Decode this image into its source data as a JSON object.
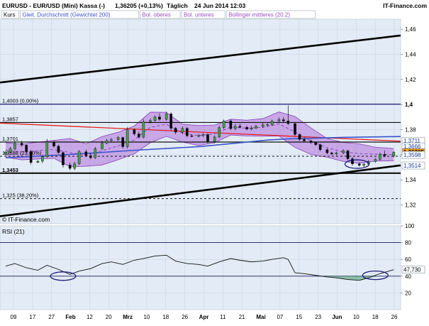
{
  "header": {
    "symbol": "EURUSD - EUR/USD (Mini) Kassa (-)",
    "last": "1,36205 (+0,13%)",
    "period": "Täglich",
    "datetime": "24 Jun 2014 12:03",
    "source": "IT-Finance.com"
  },
  "legend": [
    {
      "label": "Kurs",
      "color": "#000000"
    },
    {
      "label": "Gleit. Durchschnitt (Gewichtet 200)",
      "color": "#3a55c8"
    },
    {
      "label": "Bol. oberes",
      "color": "#9a4fc4"
    },
    {
      "label": "Bol. unteres",
      "color": "#9a4fc4"
    },
    {
      "label": "Bollinger mittleres (20.2)",
      "color": "#9a4fc4"
    }
  ],
  "watermark": "© IT-Finance.com",
  "colors": {
    "panel_bg": "#e3ecf6",
    "candle_up": "#3da33d",
    "candle_down": "#000000",
    "band_fill": "#b070d8",
    "wma": "#3a55c8",
    "red_line": "#e02020",
    "price_tag": "#f0a020"
  },
  "chart_data": [
    {
      "type": "candlestick",
      "title": "EURUSD - EUR/USD (Mini) Kassa (-)",
      "ylim": [
        1.305,
        1.468
      ],
      "y_ticks": [
        "1,32",
        "1,34",
        "1,36",
        "1,38",
        "1,4",
        "1,42",
        "1,44",
        "1,46"
      ],
      "x_ticks": [
        "09",
        "17",
        "27",
        "Feb",
        "12",
        "20",
        "Mrz",
        "10",
        "18",
        "26",
        "Apr",
        "11",
        "21",
        "Mai",
        "07",
        "15",
        "23",
        "Jun",
        "10",
        "18",
        "26"
      ],
      "x_start": "2014-01-06",
      "x_end": "2014-06-27",
      "levels": [
        {
          "label": "1,4003 (0,00%)",
          "value": 1.4003,
          "style": "solid"
        },
        {
          "label": "1,3857",
          "value": 1.3857,
          "style": "solid"
        },
        {
          "label": "1,3701",
          "value": 1.3701,
          "style": "solid"
        },
        {
          "label": "1,3588 (23,60%)",
          "value": 1.3588,
          "style": "dashed"
        },
        {
          "label": "1,3453",
          "value": 1.3453,
          "style": "solid-thick"
        },
        {
          "label": "1,325 (38,20%)",
          "value": 1.325,
          "style": "dashed"
        }
      ],
      "price_labels": [
        {
          "text": "1,3711",
          "value": 1.3711
        },
        {
          "text": "1,3666",
          "value": 1.3666
        },
        {
          "text": "1,36205",
          "value": 1.36205,
          "highlight": true
        },
        {
          "text": "1,3598",
          "value": 1.3598
        },
        {
          "text": "1,3514",
          "value": 1.3514
        }
      ],
      "trendlines": [
        {
          "name": "upper channel",
          "from": [
            "2014-01-06",
            1.4175
          ],
          "to": [
            "2014-06-27",
            1.455
          ]
        },
        {
          "name": "lower channel",
          "from": [
            "2014-01-06",
            1.311
          ],
          "to": [
            "2014-06-27",
            1.3515
          ]
        },
        {
          "name": "resistance",
          "from": [
            "2014-01-06",
            1.3852
          ],
          "to": [
            "2014-06-27",
            1.3708
          ]
        }
      ],
      "weighted_ma_200": [
        [
          "2014-01-06",
          1.3575
        ],
        [
          "2014-02-03",
          1.3602
        ],
        [
          "2014-03-03",
          1.3635
        ],
        [
          "2014-04-01",
          1.3665
        ],
        [
          "2014-05-01",
          1.3718
        ],
        [
          "2014-05-09",
          1.3726
        ],
        [
          "2014-06-02",
          1.3738
        ],
        [
          "2014-06-27",
          1.3745
        ]
      ],
      "bollinger_bands": [
        {
          "d": "2014-01-06",
          "upper": 1.3696,
          "middle": 1.3638,
          "lower": 1.3579
        },
        {
          "d": "2014-01-13",
          "upper": 1.3684,
          "middle": 1.3622,
          "lower": 1.3559
        },
        {
          "d": "2014-01-20",
          "upper": 1.37,
          "middle": 1.3633,
          "lower": 1.3566
        },
        {
          "d": "2014-01-27",
          "upper": 1.3714,
          "middle": 1.3642,
          "lower": 1.3571
        },
        {
          "d": "2014-02-03",
          "upper": 1.3729,
          "middle": 1.3617,
          "lower": 1.3504
        },
        {
          "d": "2014-02-10",
          "upper": 1.3687,
          "middle": 1.3598,
          "lower": 1.3508
        },
        {
          "d": "2014-02-17",
          "upper": 1.3745,
          "middle": 1.3632,
          "lower": 1.3518
        },
        {
          "d": "2014-02-24",
          "upper": 1.3779,
          "middle": 1.367,
          "lower": 1.356
        },
        {
          "d": "2014-03-03",
          "upper": 1.3829,
          "middle": 1.3718,
          "lower": 1.3607
        },
        {
          "d": "2014-03-10",
          "upper": 1.3939,
          "middle": 1.3818,
          "lower": 1.3696
        },
        {
          "d": "2014-03-17",
          "upper": 1.3938,
          "middle": 1.3842,
          "lower": 1.3746
        },
        {
          "d": "2014-03-24",
          "upper": 1.3843,
          "middle": 1.3772,
          "lower": 1.3701
        },
        {
          "d": "2014-03-31",
          "upper": 1.3832,
          "middle": 1.3753,
          "lower": 1.3673
        },
        {
          "d": "2014-04-07",
          "upper": 1.3836,
          "middle": 1.3766,
          "lower": 1.3695
        },
        {
          "d": "2014-04-14",
          "upper": 1.3883,
          "middle": 1.382,
          "lower": 1.3757
        },
        {
          "d": "2014-04-21",
          "upper": 1.3875,
          "middle": 1.3812,
          "lower": 1.3749
        },
        {
          "d": "2014-04-28",
          "upper": 1.3888,
          "middle": 1.3818,
          "lower": 1.3747
        },
        {
          "d": "2014-05-05",
          "upper": 1.3941,
          "middle": 1.3845,
          "lower": 1.3749
        },
        {
          "d": "2014-05-12",
          "upper": 1.3905,
          "middle": 1.3782,
          "lower": 1.3658
        },
        {
          "d": "2014-05-19",
          "upper": 1.3813,
          "middle": 1.3708,
          "lower": 1.3602
        },
        {
          "d": "2014-05-26",
          "upper": 1.3729,
          "middle": 1.3655,
          "lower": 1.358
        },
        {
          "d": "2014-06-02",
          "upper": 1.3698,
          "middle": 1.3622,
          "lower": 1.3546
        },
        {
          "d": "2014-06-09",
          "upper": 1.3686,
          "middle": 1.3609,
          "lower": 1.3531
        },
        {
          "d": "2014-06-16",
          "upper": 1.366,
          "middle": 1.3605,
          "lower": 1.3549
        },
        {
          "d": "2014-06-24",
          "upper": 1.365,
          "middle": 1.3601,
          "lower": 1.3552
        }
      ],
      "candles": [
        {
          "d": "2014-01-06",
          "o": 1.3605,
          "h": 1.3632,
          "l": 1.3594,
          "c": 1.362
        },
        {
          "d": "2014-01-08",
          "o": 1.362,
          "h": 1.3662,
          "l": 1.3607,
          "c": 1.3648
        },
        {
          "d": "2014-01-10",
          "o": 1.3648,
          "h": 1.3711,
          "l": 1.3634,
          "c": 1.3692
        },
        {
          "d": "2014-01-13",
          "o": 1.3692,
          "h": 1.3711,
          "l": 1.3664,
          "c": 1.3676
        },
        {
          "d": "2014-01-15",
          "o": 1.3676,
          "h": 1.3683,
          "l": 1.3612,
          "c": 1.3624
        },
        {
          "d": "2014-01-17",
          "o": 1.3624,
          "h": 1.3638,
          "l": 1.3522,
          "c": 1.3538
        },
        {
          "d": "2014-01-20",
          "o": 1.3538,
          "h": 1.3557,
          "l": 1.3533,
          "c": 1.3548
        },
        {
          "d": "2014-01-22",
          "o": 1.3548,
          "h": 1.3596,
          "l": 1.3533,
          "c": 1.3584
        },
        {
          "d": "2014-01-24",
          "o": 1.3584,
          "h": 1.3726,
          "l": 1.3574,
          "c": 1.3701
        },
        {
          "d": "2014-01-27",
          "o": 1.3701,
          "h": 1.3711,
          "l": 1.3656,
          "c": 1.3668
        },
        {
          "d": "2014-01-29",
          "o": 1.3668,
          "h": 1.368,
          "l": 1.3607,
          "c": 1.3617
        },
        {
          "d": "2014-01-31",
          "o": 1.3617,
          "h": 1.3627,
          "l": 1.3497,
          "c": 1.3518
        },
        {
          "d": "2014-02-03",
          "o": 1.3518,
          "h": 1.3537,
          "l": 1.3476,
          "c": 1.3491
        },
        {
          "d": "2014-02-05",
          "o": 1.3491,
          "h": 1.3544,
          "l": 1.3476,
          "c": 1.3528
        },
        {
          "d": "2014-02-07",
          "o": 1.3528,
          "h": 1.3638,
          "l": 1.3518,
          "c": 1.3624
        },
        {
          "d": "2014-02-10",
          "o": 1.3624,
          "h": 1.3642,
          "l": 1.3583,
          "c": 1.3593
        },
        {
          "d": "2014-02-12",
          "o": 1.3593,
          "h": 1.3612,
          "l": 1.3564,
          "c": 1.3576
        },
        {
          "d": "2014-02-14",
          "o": 1.3576,
          "h": 1.3662,
          "l": 1.3566,
          "c": 1.3648
        },
        {
          "d": "2014-02-17",
          "o": 1.3648,
          "h": 1.3711,
          "l": 1.3639,
          "c": 1.3692
        },
        {
          "d": "2014-02-19",
          "o": 1.3692,
          "h": 1.3726,
          "l": 1.3682,
          "c": 1.3712
        },
        {
          "d": "2014-02-21",
          "o": 1.3712,
          "h": 1.3734,
          "l": 1.3698,
          "c": 1.372
        },
        {
          "d": "2014-02-24",
          "o": 1.372,
          "h": 1.3748,
          "l": 1.3707,
          "c": 1.3737
        },
        {
          "d": "2014-02-26",
          "o": 1.3737,
          "h": 1.3744,
          "l": 1.3648,
          "c": 1.3664
        },
        {
          "d": "2014-02-28",
          "o": 1.3664,
          "h": 1.3819,
          "l": 1.365,
          "c": 1.3799
        },
        {
          "d": "2014-03-03",
          "o": 1.3799,
          "h": 1.3809,
          "l": 1.3752,
          "c": 1.3766
        },
        {
          "d": "2014-03-05",
          "o": 1.3766,
          "h": 1.3784,
          "l": 1.3728,
          "c": 1.374
        },
        {
          "d": "2014-03-07",
          "o": 1.374,
          "h": 1.3882,
          "l": 1.373,
          "c": 1.3862
        },
        {
          "d": "2014-03-10",
          "o": 1.3862,
          "h": 1.389,
          "l": 1.3848,
          "c": 1.3872
        },
        {
          "d": "2014-03-12",
          "o": 1.3872,
          "h": 1.3914,
          "l": 1.3862,
          "c": 1.3901
        },
        {
          "d": "2014-03-14",
          "o": 1.3901,
          "h": 1.3929,
          "l": 1.387,
          "c": 1.3882
        },
        {
          "d": "2014-03-17",
          "o": 1.3882,
          "h": 1.3943,
          "l": 1.3871,
          "c": 1.3925
        },
        {
          "d": "2014-03-19",
          "o": 1.3925,
          "h": 1.3938,
          "l": 1.3792,
          "c": 1.3811
        },
        {
          "d": "2014-03-21",
          "o": 1.3811,
          "h": 1.3821,
          "l": 1.3763,
          "c": 1.3779
        },
        {
          "d": "2014-03-24",
          "o": 1.3779,
          "h": 1.3825,
          "l": 1.3762,
          "c": 1.381
        },
        {
          "d": "2014-03-26",
          "o": 1.381,
          "h": 1.3821,
          "l": 1.3738,
          "c": 1.3751
        },
        {
          "d": "2014-03-28",
          "o": 1.3751,
          "h": 1.3762,
          "l": 1.3739,
          "c": 1.375
        },
        {
          "d": "2014-03-31",
          "o": 1.375,
          "h": 1.3765,
          "l": 1.3737,
          "c": 1.3752
        },
        {
          "d": "2014-04-02",
          "o": 1.3752,
          "h": 1.3772,
          "l": 1.374,
          "c": 1.376
        },
        {
          "d": "2014-04-04",
          "o": 1.376,
          "h": 1.3773,
          "l": 1.3691,
          "c": 1.3706
        },
        {
          "d": "2014-04-07",
          "o": 1.3706,
          "h": 1.3755,
          "l": 1.3691,
          "c": 1.3741
        },
        {
          "d": "2014-04-09",
          "o": 1.3741,
          "h": 1.3832,
          "l": 1.3732,
          "c": 1.3816
        },
        {
          "d": "2014-04-11",
          "o": 1.3816,
          "h": 1.388,
          "l": 1.3805,
          "c": 1.3869
        },
        {
          "d": "2014-04-14",
          "o": 1.3869,
          "h": 1.3879,
          "l": 1.3796,
          "c": 1.3808
        },
        {
          "d": "2014-04-16",
          "o": 1.3808,
          "h": 1.3846,
          "l": 1.3796,
          "c": 1.3827
        },
        {
          "d": "2014-04-18",
          "o": 1.3827,
          "h": 1.3849,
          "l": 1.3811,
          "c": 1.3818
        },
        {
          "d": "2014-04-21",
          "o": 1.3818,
          "h": 1.3832,
          "l": 1.3794,
          "c": 1.3804
        },
        {
          "d": "2014-04-23",
          "o": 1.3804,
          "h": 1.383,
          "l": 1.3793,
          "c": 1.3813
        },
        {
          "d": "2014-04-25",
          "o": 1.3813,
          "h": 1.384,
          "l": 1.3804,
          "c": 1.3826
        },
        {
          "d": "2014-04-28",
          "o": 1.3826,
          "h": 1.3855,
          "l": 1.3812,
          "c": 1.3838
        },
        {
          "d": "2014-04-30",
          "o": 1.3838,
          "h": 1.3853,
          "l": 1.3822,
          "c": 1.3841
        },
        {
          "d": "2014-05-02",
          "o": 1.3841,
          "h": 1.388,
          "l": 1.3829,
          "c": 1.3868
        },
        {
          "d": "2014-05-05",
          "o": 1.3868,
          "h": 1.3896,
          "l": 1.3855,
          "c": 1.3879
        },
        {
          "d": "2014-05-07",
          "o": 1.3879,
          "h": 1.3899,
          "l": 1.3852,
          "c": 1.387
        },
        {
          "d": "2014-05-09",
          "o": 1.387,
          "h": 1.3993,
          "l": 1.3837,
          "c": 1.3848
        },
        {
          "d": "2014-05-12",
          "o": 1.3848,
          "h": 1.3857,
          "l": 1.3746,
          "c": 1.3761
        },
        {
          "d": "2014-05-14",
          "o": 1.3761,
          "h": 1.377,
          "l": 1.371,
          "c": 1.3722
        },
        {
          "d": "2014-05-16",
          "o": 1.3722,
          "h": 1.3731,
          "l": 1.3699,
          "c": 1.371
        },
        {
          "d": "2014-05-19",
          "o": 1.371,
          "h": 1.3719,
          "l": 1.3686,
          "c": 1.3697
        },
        {
          "d": "2014-05-21",
          "o": 1.3697,
          "h": 1.3705,
          "l": 1.367,
          "c": 1.368
        },
        {
          "d": "2014-05-23",
          "o": 1.368,
          "h": 1.3689,
          "l": 1.3627,
          "c": 1.364
        },
        {
          "d": "2014-05-26",
          "o": 1.364,
          "h": 1.3649,
          "l": 1.3604,
          "c": 1.3615
        },
        {
          "d": "2014-05-28",
          "o": 1.3615,
          "h": 1.3624,
          "l": 1.3595,
          "c": 1.3606
        },
        {
          "d": "2014-05-30",
          "o": 1.3606,
          "h": 1.3625,
          "l": 1.3594,
          "c": 1.3615
        },
        {
          "d": "2014-06-02",
          "o": 1.3615,
          "h": 1.3645,
          "l": 1.3605,
          "c": 1.3632
        },
        {
          "d": "2014-06-04",
          "o": 1.3632,
          "h": 1.3639,
          "l": 1.3554,
          "c": 1.3568
        },
        {
          "d": "2014-06-06",
          "o": 1.3568,
          "h": 1.3582,
          "l": 1.3513,
          "c": 1.3527
        },
        {
          "d": "2014-06-09",
          "o": 1.3527,
          "h": 1.354,
          "l": 1.3505,
          "c": 1.3515
        },
        {
          "d": "2014-06-11",
          "o": 1.3515,
          "h": 1.3533,
          "l": 1.3502,
          "c": 1.3524
        },
        {
          "d": "2014-06-13",
          "o": 1.3524,
          "h": 1.3558,
          "l": 1.3512,
          "c": 1.3546
        },
        {
          "d": "2014-06-16",
          "o": 1.3546,
          "h": 1.3573,
          "l": 1.3536,
          "c": 1.3563
        },
        {
          "d": "2014-06-18",
          "o": 1.3563,
          "h": 1.3617,
          "l": 1.3552,
          "c": 1.3602
        },
        {
          "d": "2014-06-20",
          "o": 1.3602,
          "h": 1.3634,
          "l": 1.358,
          "c": 1.359
        },
        {
          "d": "2014-06-24",
          "o": 1.359,
          "h": 1.3628,
          "l": 1.3578,
          "c": 1.362
        }
      ],
      "annotations": [
        {
          "shape": "ellipse",
          "center": [
            "2014-06-08",
            1.3525
          ],
          "note": "circled low"
        }
      ]
    },
    {
      "type": "line",
      "title": "RSI (21)",
      "ylim": [
        0,
        100
      ],
      "y_ticks": [
        "20",
        "40",
        "60",
        "80",
        "100"
      ],
      "y_ref_lines": [
        40,
        80
      ],
      "last_value": "47,730",
      "x": [
        "2014-01-06",
        "2014-01-10",
        "2014-01-15",
        "2014-01-20",
        "2014-01-24",
        "2014-01-29",
        "2014-02-03",
        "2014-02-07",
        "2014-02-12",
        "2014-02-17",
        "2014-02-21",
        "2014-02-26",
        "2014-03-03",
        "2014-03-07",
        "2014-03-12",
        "2014-03-17",
        "2014-03-21",
        "2014-03-26",
        "2014-03-31",
        "2014-04-04",
        "2014-04-09",
        "2014-04-14",
        "2014-04-18",
        "2014-04-23",
        "2014-04-28",
        "2014-05-02",
        "2014-05-07",
        "2014-05-09",
        "2014-05-12",
        "2014-05-16",
        "2014-05-21",
        "2014-05-26",
        "2014-05-30",
        "2014-06-04",
        "2014-06-09",
        "2014-06-13",
        "2014-06-18",
        "2014-06-24"
      ],
      "values": [
        52,
        55,
        50,
        47,
        53,
        48,
        42,
        46,
        49,
        55,
        57,
        54,
        59,
        61,
        64,
        65,
        58,
        55,
        54,
        52,
        57,
        61,
        59,
        57,
        58,
        60,
        62,
        60,
        44,
        43,
        41,
        39,
        38,
        36,
        35,
        38,
        43,
        47.73
      ],
      "annotations": [
        {
          "shape": "ellipse",
          "center": [
            "2014-01-31",
            40
          ]
        },
        {
          "shape": "ellipse",
          "center": [
            "2014-06-16",
            41
          ]
        }
      ]
    }
  ]
}
